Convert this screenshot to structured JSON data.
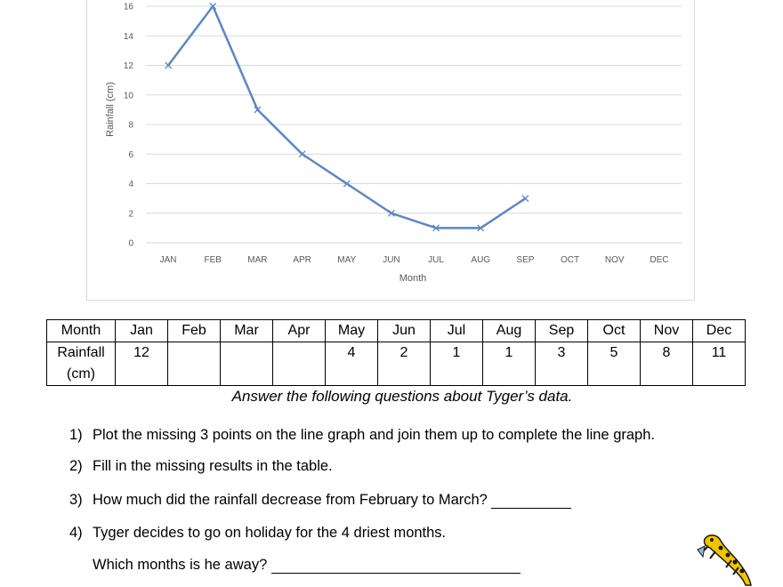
{
  "chart_data": {
    "type": "line",
    "categories": [
      "JAN",
      "FEB",
      "MAR",
      "APR",
      "MAY",
      "JUN",
      "JUL",
      "AUG",
      "SEP",
      "OCT",
      "NOV",
      "DEC"
    ],
    "series": [
      {
        "values": [
          12,
          16,
          9,
          6,
          4,
          2,
          1,
          1,
          3,
          null,
          null,
          null
        ]
      }
    ],
    "xlabel": "Month",
    "ylabel": "Rainfall (cm)",
    "ylim": [
      0,
      16
    ],
    "yticks": [
      0,
      2,
      4,
      6,
      8,
      10,
      12,
      14,
      16
    ],
    "grid": true,
    "color": "#5b87c5"
  },
  "table": {
    "header": [
      "Month",
      "Jan",
      "Feb",
      "Mar",
      "Apr",
      "May",
      "Jun",
      "Jul",
      "Aug",
      "Sep",
      "Oct",
      "Nov",
      "Dec"
    ],
    "row_label_line1": "Rainfall",
    "row_label_line2": "(cm)",
    "values": [
      "12",
      "",
      "",
      "",
      "4",
      "2",
      "1",
      "1",
      "3",
      "5",
      "8",
      "11"
    ]
  },
  "instructions": "Answer the following questions about Tyger’s data.",
  "questions": [
    {
      "num": "1)",
      "text": "Plot the missing 3 points on the line graph and join them up to complete the line graph."
    },
    {
      "num": "2)",
      "text": "Fill in the missing results in the table."
    },
    {
      "num": "3)",
      "text": "How much did the rainfall decrease from February to March?"
    },
    {
      "num": "4)",
      "text": "Tyger decides to go on holiday for the 4 driest months."
    }
  ],
  "question4_followup": "Which months is he away?",
  "icons": [
    "salamander-icon"
  ]
}
